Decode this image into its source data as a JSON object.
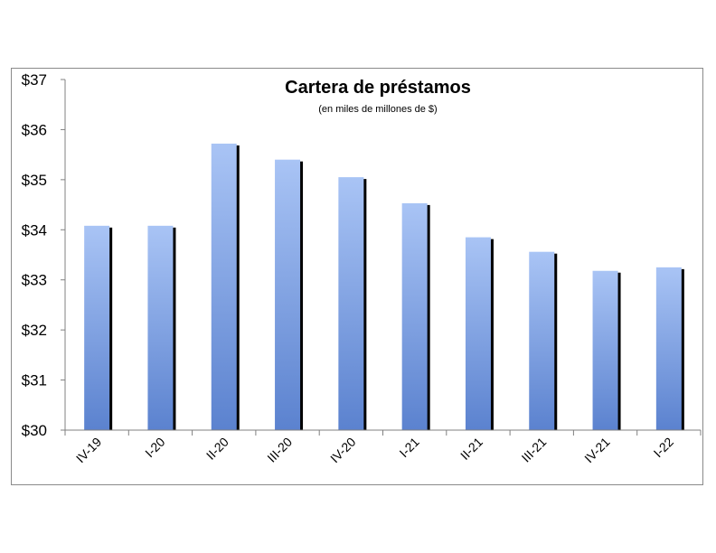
{
  "chart_data": {
    "type": "bar",
    "title": "Cartera de préstamos",
    "subtitle": "(en miles de millones  de $)",
    "categories": [
      "IV-19",
      "I-20",
      "II-20",
      "III-20",
      "IV-20",
      "I-21",
      "II-21",
      "III-21",
      "IV-21",
      "I-22"
    ],
    "values": [
      34.08,
      34.08,
      35.72,
      35.4,
      35.05,
      34.53,
      33.85,
      33.56,
      33.18,
      33.25
    ],
    "ylim": [
      30,
      37
    ],
    "yticks": [
      "$30",
      "$31",
      "$32",
      "$33",
      "$34",
      "$35",
      "$36",
      "$37"
    ],
    "xlabel": "",
    "ylabel": "",
    "grid": false,
    "legend": "none",
    "colors": {
      "bar_top": "#a9c4f5",
      "bar_bottom": "#5b82cf",
      "bar_shadow": "#000000",
      "axis": "#808080",
      "frame": "#8a8a8a"
    }
  }
}
